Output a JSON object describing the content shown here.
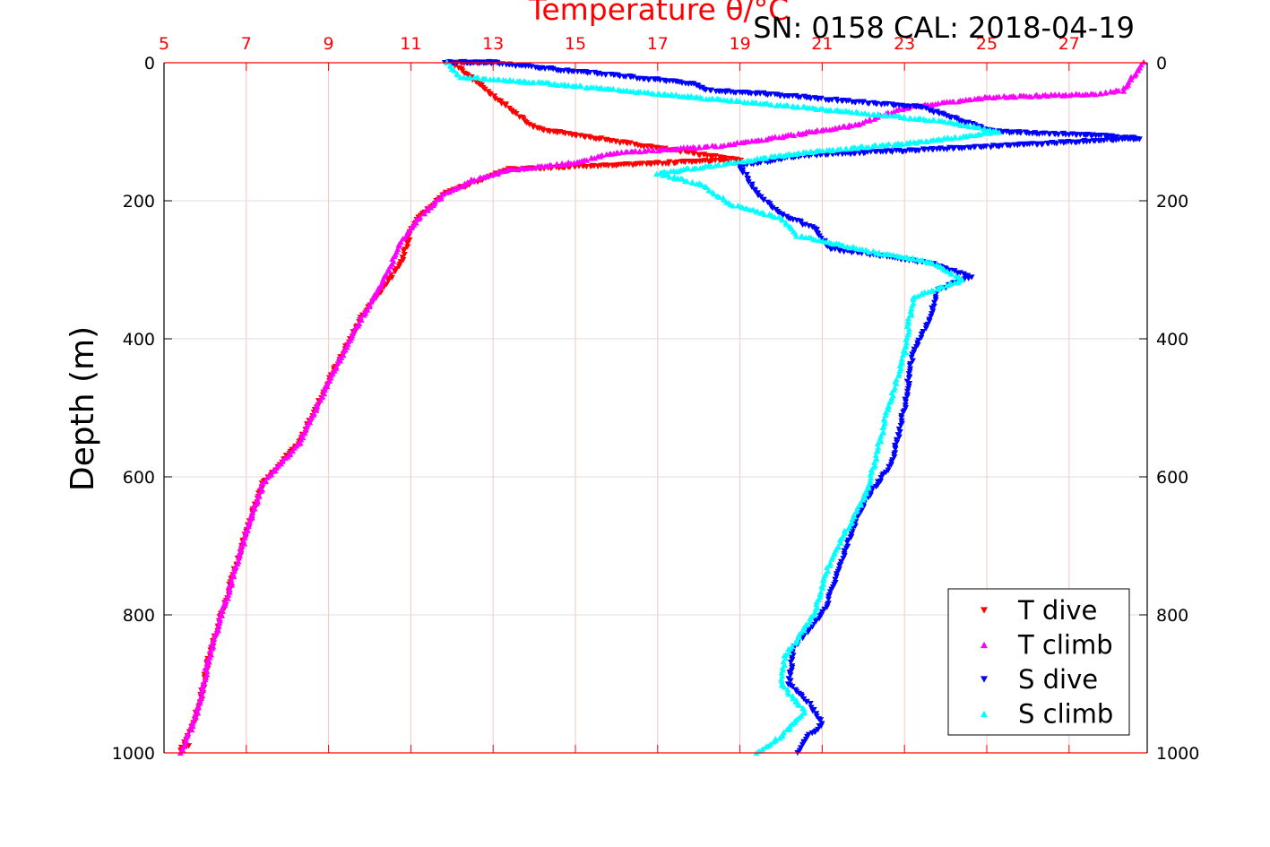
{
  "header": {
    "title": "SN: 0158  CAL: 2018-04-19"
  },
  "chart_data": {
    "type": "scatter",
    "title": "Temperature θ/°C",
    "xlabel_top": "Temperature θ/°C",
    "ylabel": "Depth (m)",
    "xlim": [
      5,
      28.9
    ],
    "ylim": [
      0,
      1000
    ],
    "y_reversed": true,
    "grid": true,
    "legend_position": "bottom-right",
    "x_ticks": [
      "5",
      "7",
      "9",
      "11",
      "13",
      "15",
      "17",
      "19",
      "21",
      "23",
      "25",
      "27"
    ],
    "y_ticks": [
      "0",
      "200",
      "400",
      "600",
      "800",
      "1000"
    ],
    "y_ticks_right": [
      "0",
      "200",
      "400",
      "600",
      "800",
      "1000"
    ],
    "colors": {
      "top_axis": "#ff0000",
      "grid_x": "#f3c6c6",
      "grid_y": "#dddddd"
    },
    "series": [
      {
        "name": "T dive",
        "marker": "triangle-down",
        "color": "#ff0000",
        "points": [
          [
            12.5,
            0
          ],
          [
            12.9,
            0
          ],
          [
            13.1,
            0
          ],
          [
            12.0,
            0
          ],
          [
            14,
            95
          ],
          [
            17,
            124
          ],
          [
            19,
            141
          ],
          [
            13.4,
            155
          ],
          [
            11.8,
            190
          ],
          [
            11.2,
            225
          ],
          [
            11.0,
            245
          ],
          [
            10.8,
            285
          ],
          [
            10.4,
            320
          ],
          [
            9.8,
            370
          ],
          [
            9.1,
            450
          ],
          [
            8.3,
            550
          ],
          [
            7.4,
            610
          ],
          [
            7.0,
            680
          ],
          [
            6.6,
            760
          ],
          [
            6.1,
            860
          ],
          [
            5.9,
            920
          ],
          [
            5.7,
            960
          ],
          [
            5.4,
            1000
          ],
          [
            5.6,
            990
          ]
        ]
      },
      {
        "name": "T climb",
        "marker": "triangle-up",
        "color": "#ff00ff",
        "points": [
          [
            28.8,
            0
          ],
          [
            28.3,
            40
          ],
          [
            27.6,
            45
          ],
          [
            25,
            50
          ],
          [
            23,
            65
          ],
          [
            21.8,
            90
          ],
          [
            20.2,
            105
          ],
          [
            18.5,
            120
          ],
          [
            16,
            130
          ],
          [
            14.9,
            145
          ],
          [
            13.4,
            155
          ],
          [
            12.5,
            170
          ],
          [
            11.8,
            190
          ],
          [
            11.2,
            225
          ],
          [
            10.8,
            255
          ],
          [
            10.6,
            280
          ],
          [
            10.3,
            320
          ],
          [
            9.8,
            370
          ],
          [
            9.1,
            450
          ],
          [
            8.3,
            550
          ],
          [
            7.4,
            610
          ],
          [
            7.0,
            680
          ],
          [
            6.6,
            760
          ],
          [
            6.1,
            860
          ],
          [
            5.9,
            920
          ],
          [
            5.7,
            960
          ],
          [
            5.4,
            1000
          ]
        ]
      },
      {
        "name": "S dive",
        "marker": "triangle-down",
        "color": "#0000ff",
        "points": [
          [
            11.8,
            0
          ],
          [
            12.4,
            0
          ],
          [
            12.9,
            0
          ],
          [
            17.8,
            30
          ],
          [
            18.2,
            40
          ],
          [
            19.5,
            45
          ],
          [
            23.4,
            65
          ],
          [
            25.2,
            100
          ],
          [
            27.4,
            105
          ],
          [
            28.7,
            110
          ],
          [
            25.6,
            120
          ],
          [
            20.5,
            135
          ],
          [
            19.0,
            150
          ],
          [
            19.4,
            190
          ],
          [
            20.0,
            220
          ],
          [
            20.8,
            240
          ],
          [
            21.2,
            270
          ],
          [
            23.6,
            290
          ],
          [
            24.6,
            310
          ],
          [
            23.8,
            330
          ],
          [
            23.6,
            375
          ],
          [
            23.2,
            420
          ],
          [
            23.0,
            500
          ],
          [
            22.7,
            580
          ],
          [
            22.0,
            640
          ],
          [
            21.6,
            700
          ],
          [
            21.1,
            790
          ],
          [
            20.3,
            850
          ],
          [
            20.2,
            900
          ],
          [
            20.7,
            930
          ],
          [
            21.0,
            960
          ],
          [
            20.6,
            980
          ],
          [
            20.4,
            1000
          ]
        ]
      },
      {
        "name": "S climb",
        "marker": "triangle-up",
        "color": "#00ffff",
        "points": [
          [
            11.9,
            0
          ],
          [
            12.2,
            20
          ],
          [
            14.4,
            30
          ],
          [
            15.3,
            35
          ],
          [
            22.4,
            75
          ],
          [
            24.0,
            85
          ],
          [
            25.3,
            100
          ],
          [
            23.3,
            115
          ],
          [
            20.5,
            130
          ],
          [
            18.2,
            150
          ],
          [
            17.0,
            160
          ],
          [
            18.0,
            175
          ],
          [
            18.8,
            205
          ],
          [
            20.0,
            225
          ],
          [
            20.4,
            250
          ],
          [
            21.9,
            270
          ],
          [
            23.7,
            290
          ],
          [
            24.4,
            315
          ],
          [
            23.2,
            340
          ],
          [
            23.0,
            420
          ],
          [
            22.6,
            500
          ],
          [
            22.1,
            620
          ],
          [
            21.2,
            720
          ],
          [
            20.8,
            800
          ],
          [
            20.1,
            860
          ],
          [
            20.0,
            900
          ],
          [
            20.6,
            940
          ],
          [
            20.0,
            975
          ],
          [
            19.4,
            1000
          ]
        ]
      }
    ]
  }
}
